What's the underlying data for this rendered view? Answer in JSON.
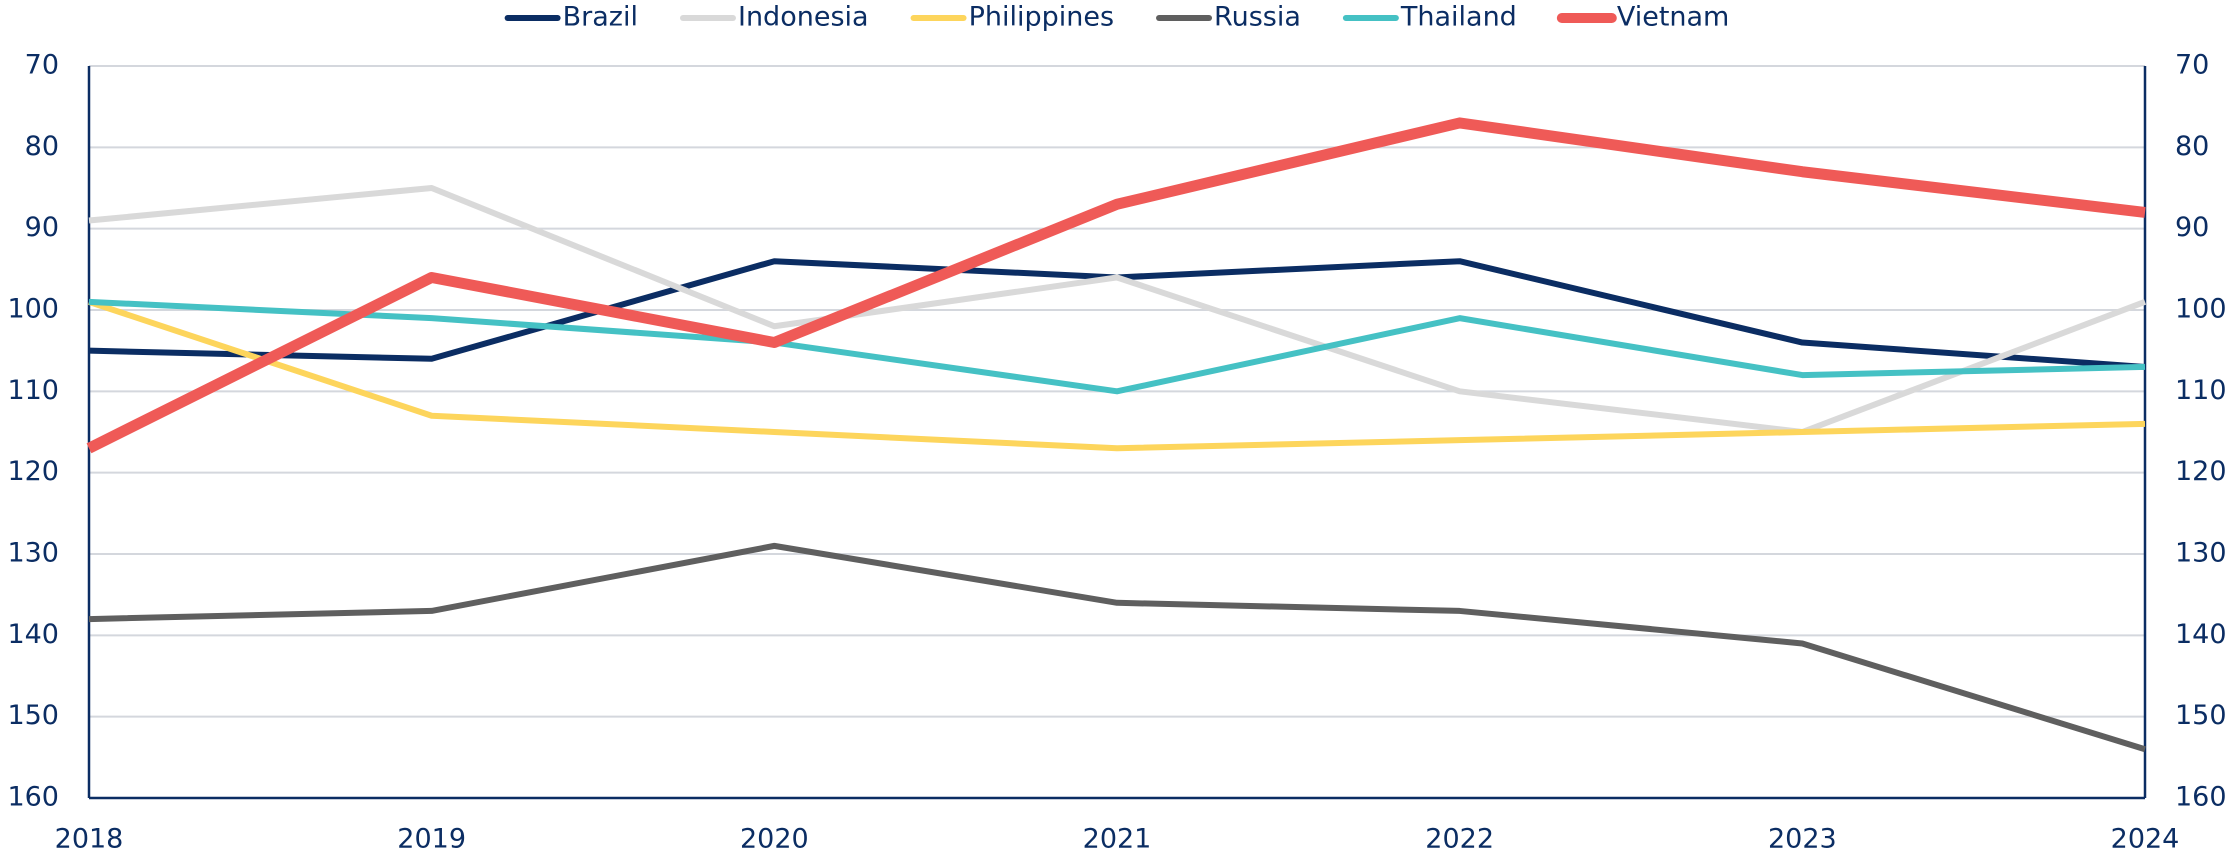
{
  "chart_data": {
    "type": "line",
    "x": [
      2018,
      2019,
      2020,
      2021,
      2022,
      2023,
      2024
    ],
    "xlim": [
      2018,
      2024
    ],
    "xticks": [
      2018,
      2019,
      2020,
      2021,
      2022,
      2023,
      2024
    ],
    "ylim": [
      160,
      70
    ],
    "yticks": [
      70,
      80,
      90,
      100,
      110,
      120,
      130,
      140,
      150,
      160
    ],
    "y2lim": [
      160,
      70
    ],
    "y2ticks": [
      70,
      80,
      90,
      100,
      110,
      120,
      130,
      140,
      150,
      160
    ],
    "grid": true,
    "legend": "top",
    "series": [
      {
        "name": "Brazil",
        "color": "#0b2d63",
        "values": [
          105,
          106,
          94,
          96,
          94,
          104,
          107
        ]
      },
      {
        "name": "Indonesia",
        "color": "#d9d9d9",
        "values": [
          89,
          85,
          102,
          96,
          110,
          115,
          99
        ]
      },
      {
        "name": "Philippines",
        "color": "#fdd55c",
        "values": [
          99,
          113,
          115,
          117,
          116,
          115,
          114
        ]
      },
      {
        "name": "Russia",
        "color": "#5f5f5f",
        "values": [
          138,
          137,
          129,
          136,
          137,
          141,
          154
        ]
      },
      {
        "name": "Thailand",
        "color": "#45c1c4",
        "values": [
          99,
          101,
          104,
          110,
          101,
          108,
          107
        ]
      },
      {
        "name": "Vietnam",
        "color": "#ef5a57",
        "values": [
          117,
          96,
          104,
          87,
          77,
          83,
          88
        ]
      }
    ]
  }
}
